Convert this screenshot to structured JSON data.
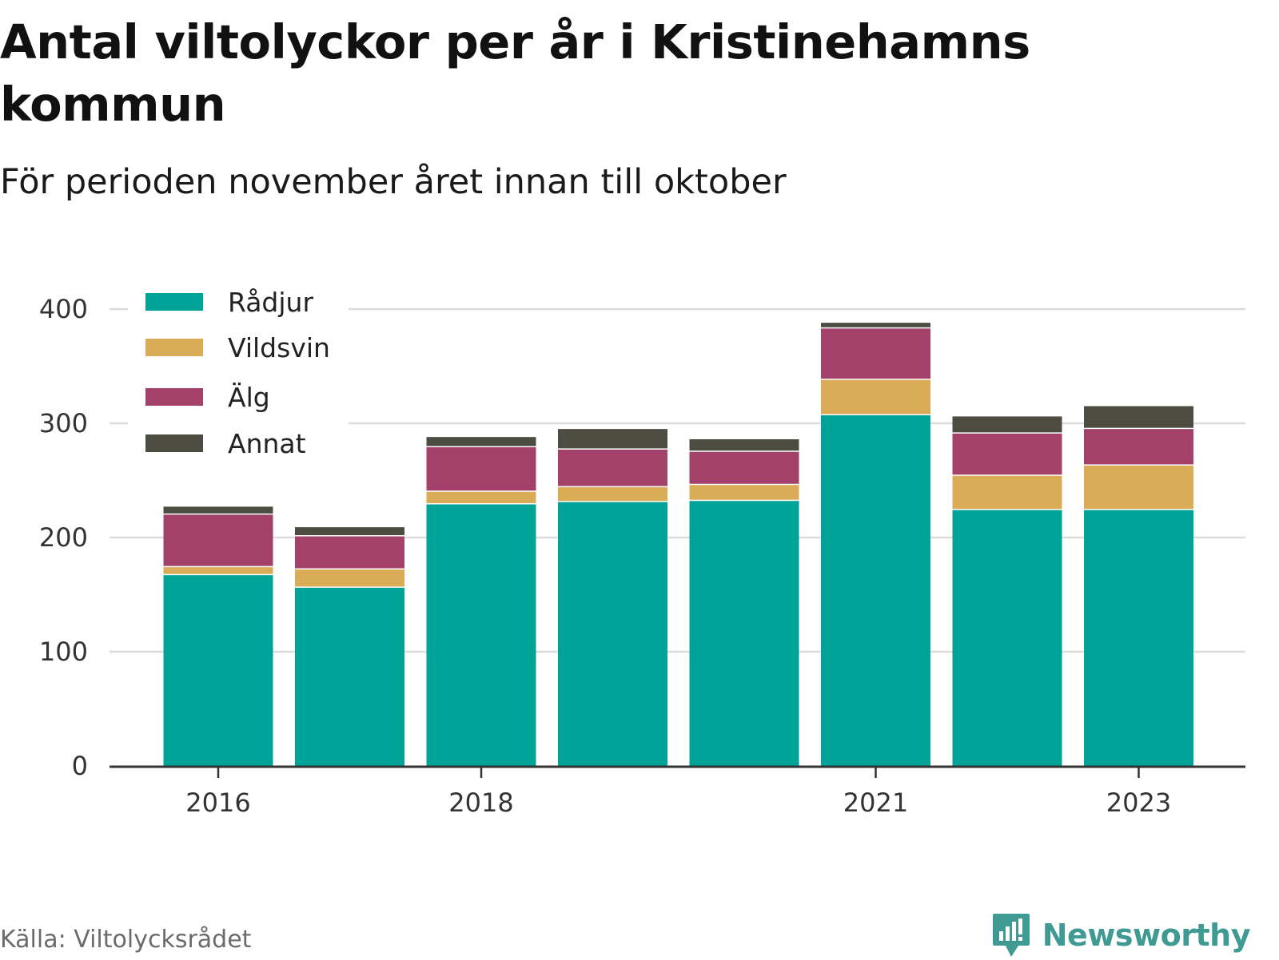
{
  "title": "Antal viltolyckor per år i Kristinehamns kommun",
  "subtitle": "För perioden november året innan till oktober",
  "source": "Källa: Viltolycksrådet",
  "brand": "Newsworthy",
  "colors": {
    "Rådjur": "#00a398",
    "Vildsvin": "#dbac58",
    "Älg": "#a3416a",
    "Annat": "#4c4c40"
  },
  "chart_data": {
    "type": "bar",
    "stacked": true,
    "categories": [
      "2016",
      "2017",
      "2018",
      "2019",
      "2020",
      "2021",
      "2022",
      "2023"
    ],
    "x_tick_labels": [
      "2016",
      "2018",
      "2021",
      "2023"
    ],
    "series": [
      {
        "name": "Rådjur",
        "values": [
          167,
          156,
          229,
          231,
          232,
          307,
          224,
          224
        ]
      },
      {
        "name": "Vildsvin",
        "values": [
          7,
          16,
          11,
          13,
          14,
          31,
          30,
          39
        ]
      },
      {
        "name": "Älg",
        "values": [
          46,
          29,
          39,
          33,
          29,
          45,
          37,
          32
        ]
      },
      {
        "name": "Annat",
        "values": [
          7,
          8,
          9,
          18,
          11,
          5,
          15,
          20
        ]
      }
    ],
    "y_ticks": [
      0,
      100,
      200,
      300,
      400
    ],
    "ylim": [
      0,
      400
    ],
    "grid": true,
    "legend_position": "top-left"
  }
}
